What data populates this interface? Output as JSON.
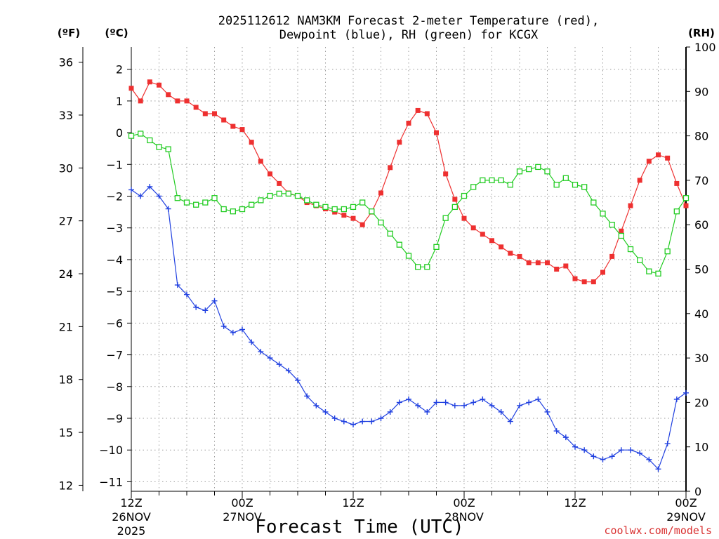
{
  "chart_data": {
    "type": "line",
    "title_line1": "2025112612 NAM3KM Forecast 2-meter Temperature (red),",
    "title_line2": "Dewpoint (blue), RH (green) for KCGX",
    "xlabel": "Forecast Time (UTC)",
    "credit": "coolwx.com/models",
    "units": {
      "fahrenheit": "(ºF)",
      "celsius": "(ºC)",
      "rh": "(RH)"
    },
    "x_range": [
      0,
      60
    ],
    "x_ticks": [
      {
        "hour": 0,
        "lines": [
          "12Z",
          "26NOV",
          "2025"
        ]
      },
      {
        "hour": 12,
        "lines": [
          "00Z",
          "27NOV"
        ]
      },
      {
        "hour": 24,
        "lines": [
          "12Z"
        ]
      },
      {
        "hour": 36,
        "lines": [
          "00Z",
          "28NOV"
        ]
      },
      {
        "hour": 48,
        "lines": [
          "12Z"
        ]
      },
      {
        "hour": 60,
        "lines": [
          "00Z",
          "29NOV"
        ]
      }
    ],
    "celsius_axis": {
      "range": [
        -11.3,
        2.7
      ],
      "ticks": [
        2,
        1,
        0,
        -1,
        -2,
        -3,
        -4,
        -5,
        -6,
        -7,
        -8,
        -9,
        -10,
        -11
      ],
      "tick_labels": [
        "2",
        "1",
        "0",
        "−1",
        "−2",
        "−3",
        "−4",
        "−5",
        "−6",
        "−7",
        "−8",
        "−9",
        "−10",
        "−11"
      ]
    },
    "fahrenheit_axis": {
      "ticks": [
        12,
        15,
        18,
        21,
        24,
        27,
        30,
        33,
        36
      ],
      "tick_labels": [
        "12",
        "15",
        "18",
        "21",
        "24",
        "27",
        "30",
        "33",
        "36"
      ]
    },
    "rh_axis": {
      "range": [
        0,
        100
      ],
      "ticks": [
        0,
        10,
        20,
        30,
        40,
        50,
        60,
        70,
        80,
        90,
        100
      ],
      "tick_labels": [
        "0",
        "10",
        "20",
        "30",
        "40",
        "50",
        "60",
        "70",
        "80",
        "90",
        "100"
      ]
    },
    "hours": [
      0,
      1,
      2,
      3,
      4,
      5,
      6,
      7,
      8,
      9,
      10,
      11,
      12,
      13,
      14,
      15,
      16,
      17,
      18,
      19,
      20,
      21,
      22,
      23,
      24,
      25,
      26,
      27,
      28,
      29,
      30,
      31,
      32,
      33,
      34,
      35,
      36,
      37,
      38,
      39,
      40,
      41,
      42,
      43,
      44,
      45,
      46,
      47,
      48,
      49,
      50,
      51,
      52,
      53,
      54,
      55,
      56,
      57,
      58,
      59,
      60
    ],
    "series": [
      {
        "name": "2-meter Temperature",
        "color": "#ee3030",
        "units": "C",
        "marker": "filled-square",
        "values": [
          1.4,
          1.0,
          1.6,
          1.5,
          1.2,
          1.0,
          1.0,
          0.8,
          0.6,
          0.6,
          0.4,
          0.2,
          0.1,
          -0.3,
          -0.9,
          -1.3,
          -1.6,
          -1.9,
          -2.0,
          -2.2,
          -2.3,
          -2.4,
          -2.5,
          -2.6,
          -2.7,
          -2.9,
          -2.5,
          -1.9,
          -1.1,
          -0.3,
          0.3,
          0.7,
          0.6,
          0.0,
          -1.3,
          -2.1,
          -2.7,
          -3.0,
          -3.2,
          -3.4,
          -3.6,
          -3.8,
          -3.9,
          -4.1,
          -4.1,
          -4.1,
          -4.3,
          -4.2,
          -4.6,
          -4.7,
          -4.7,
          -4.4,
          -3.9,
          -3.1,
          -2.3,
          -1.5,
          -0.9,
          -0.7,
          -0.8,
          -1.6,
          -2.3
        ]
      },
      {
        "name": "Dewpoint",
        "color": "#2040e0",
        "units": "C",
        "marker": "plus",
        "values": [
          -1.8,
          -2.0,
          -1.7,
          -2.0,
          -2.4,
          -4.8,
          -5.1,
          -5.5,
          -5.6,
          -5.3,
          -6.1,
          -6.3,
          -6.2,
          -6.6,
          -6.9,
          -7.1,
          -7.3,
          -7.5,
          -7.8,
          -8.3,
          -8.6,
          -8.8,
          -9.0,
          -9.1,
          -9.2,
          -9.1,
          -9.1,
          -9.0,
          -8.8,
          -8.5,
          -8.4,
          -8.6,
          -8.8,
          -8.5,
          -8.5,
          -8.6,
          -8.6,
          -8.5,
          -8.4,
          -8.6,
          -8.8,
          -9.1,
          -8.6,
          -8.5,
          -8.4,
          -8.8,
          -9.4,
          -9.6,
          -9.9,
          -10.0,
          -10.2,
          -10.3,
          -10.2,
          -10.0,
          -10.0,
          -10.1,
          -10.3,
          -10.6,
          -9.8,
          -8.4,
          -8.2
        ]
      },
      {
        "name": "RH",
        "color": "#22cc22",
        "units": "%",
        "marker": "open-square",
        "values": [
          80,
          80.5,
          79,
          77.5,
          77,
          66,
          65,
          64.5,
          65,
          66,
          63.5,
          63,
          63.5,
          64.5,
          65.5,
          66.5,
          67,
          67,
          66.5,
          65.5,
          64.5,
          64,
          63.5,
          63.5,
          64,
          65,
          63,
          60.5,
          58,
          55.5,
          53,
          50.5,
          50.5,
          55,
          61.5,
          64,
          66.5,
          68.5,
          70,
          70,
          70,
          69,
          72,
          72.5,
          73,
          72,
          69,
          70.5,
          69,
          68.5,
          65,
          62.5,
          60,
          57.5,
          54.5,
          52,
          49.5,
          49,
          54,
          63,
          66
        ]
      }
    ]
  }
}
